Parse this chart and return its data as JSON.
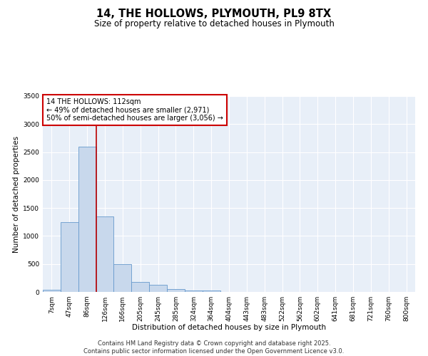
{
  "title_line1": "14, THE HOLLOWS, PLYMOUTH, PL9 8TX",
  "title_line2": "Size of property relative to detached houses in Plymouth",
  "xlabel": "Distribution of detached houses by size in Plymouth",
  "ylabel": "Number of detached properties",
  "categories": [
    "7sqm",
    "47sqm",
    "86sqm",
    "126sqm",
    "166sqm",
    "205sqm",
    "245sqm",
    "285sqm",
    "324sqm",
    "364sqm",
    "404sqm",
    "443sqm",
    "483sqm",
    "522sqm",
    "562sqm",
    "602sqm",
    "641sqm",
    "681sqm",
    "721sqm",
    "760sqm",
    "800sqm"
  ],
  "values": [
    40,
    1250,
    2600,
    1350,
    500,
    175,
    130,
    55,
    25,
    20,
    0,
    0,
    0,
    0,
    0,
    0,
    0,
    0,
    0,
    0,
    0
  ],
  "bar_color": "#c8d8ec",
  "bar_edge_color": "#6699cc",
  "vline_color": "#bb0000",
  "vline_xindex": 2.5,
  "annotation_text": "14 THE HOLLOWS: 112sqm\n← 49% of detached houses are smaller (2,971)\n50% of semi-detached houses are larger (3,056) →",
  "annotation_box_facecolor": "#ffffff",
  "annotation_box_edgecolor": "#cc0000",
  "ylim": [
    0,
    3500
  ],
  "yticks": [
    0,
    500,
    1000,
    1500,
    2000,
    2500,
    3000,
    3500
  ],
  "bg_color": "#e8eff8",
  "footer_line1": "Contains HM Land Registry data © Crown copyright and database right 2025.",
  "footer_line2": "Contains public sector information licensed under the Open Government Licence v3.0.",
  "title_fontsize": 10.5,
  "subtitle_fontsize": 8.5,
  "axis_label_fontsize": 7.5,
  "tick_fontsize": 6.5,
  "annotation_fontsize": 7,
  "footer_fontsize": 6
}
